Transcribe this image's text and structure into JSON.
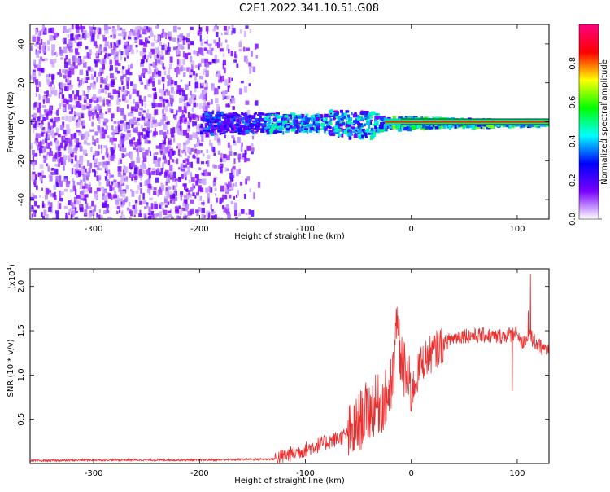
{
  "title": "C2E1.2022.341.10.51.G08",
  "chart_data": [
    {
      "type": "heatmap",
      "xlabel": "Height of straight line (km)",
      "ylabel": "Frequency (Hz)",
      "xlim": [
        -360,
        130
      ],
      "ylim": [
        -50,
        50
      ],
      "xticks": [
        -300,
        -200,
        -100,
        0,
        100
      ],
      "yticks": [
        -40,
        -20,
        0,
        20,
        40
      ],
      "colorbar": {
        "label": "Normalized spectral amplitude",
        "range": [
          0,
          1
        ],
        "ticks": [
          "0.0",
          "0.2",
          "0.4",
          "0.6",
          "0.8"
        ],
        "colors": [
          "#ffffff",
          "#7a00ff",
          "#0000ff",
          "#00ffff",
          "#00ff00",
          "#ffff00",
          "#ff0000",
          "#ff0080"
        ]
      },
      "signal_band": {
        "x_start": -200,
        "x_end": 130,
        "center_hz": 0,
        "halfwidth_start_hz": 6,
        "halfwidth_end_hz": 1
      },
      "noise_region": {
        "x_start": -360,
        "x_end": -140
      }
    },
    {
      "type": "line",
      "xlabel": "Height of straight line (km)",
      "ylabel": "SNR (10 * v/v)",
      "multiplier": "(x10",
      "multiplier_exp": "4",
      "multiplier_close": ")",
      "xlim": [
        -360,
        130
      ],
      "ylim": [
        0,
        2.2
      ],
      "xticks": [
        -300,
        -200,
        -100,
        0,
        100
      ],
      "yticks": [
        0.5,
        1.0,
        1.5,
        2.0
      ],
      "series": [
        {
          "color": "#e83030",
          "x": [
            -360,
            -300,
            -200,
            -130,
            -110,
            -90,
            -70,
            -55,
            -45,
            -35,
            -25,
            -18,
            -14,
            -8,
            0,
            10,
            20,
            30,
            40,
            50,
            60,
            70,
            80,
            90,
            100,
            105,
            110,
            115,
            120,
            125,
            130
          ],
          "y": [
            0.03,
            0.04,
            0.04,
            0.05,
            0.12,
            0.2,
            0.28,
            0.35,
            0.55,
            0.65,
            0.7,
            0.9,
            1.45,
            1.1,
            0.8,
            1.15,
            1.25,
            1.35,
            1.42,
            1.45,
            1.44,
            1.45,
            1.43,
            1.45,
            1.47,
            1.35,
            1.45,
            1.4,
            1.33,
            1.3,
            1.28
          ]
        }
      ]
    }
  ]
}
